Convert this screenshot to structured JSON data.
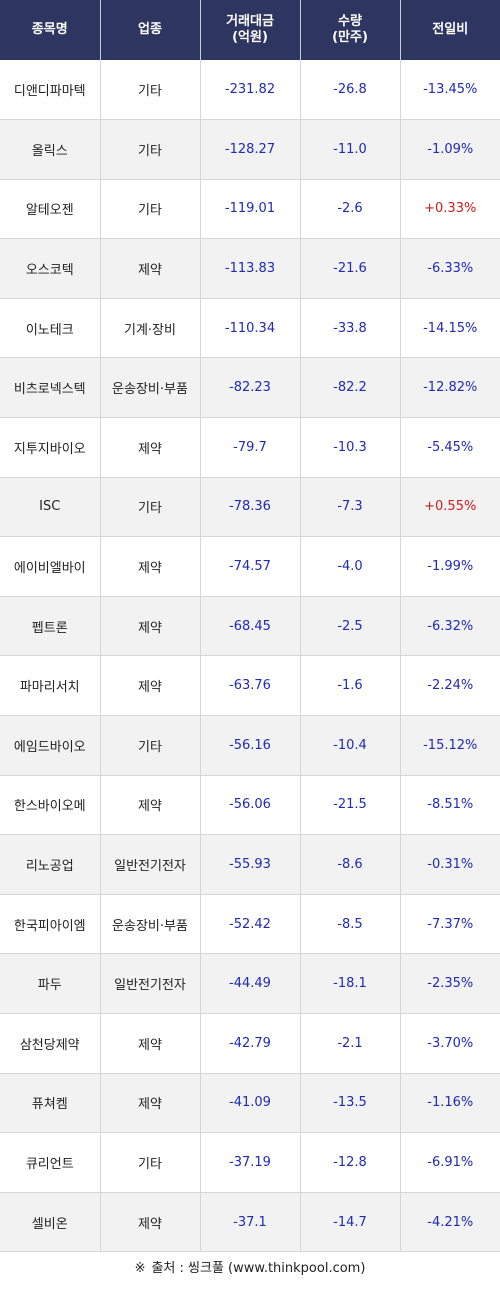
{
  "table": {
    "headers": [
      "종목명",
      "업종",
      "거래대금\n(억원)",
      "수량\n(만주)",
      "전일비"
    ],
    "rows": [
      {
        "name": "디앤디파마텍",
        "sector": "기타",
        "amount": "-231.82",
        "volume": "-26.8",
        "change": "-13.45%",
        "direction": "down"
      },
      {
        "name": "올릭스",
        "sector": "기타",
        "amount": "-128.27",
        "volume": "-11.0",
        "change": "-1.09%",
        "direction": "down"
      },
      {
        "name": "알테오젠",
        "sector": "기타",
        "amount": "-119.01",
        "volume": "-2.6",
        "change": "+0.33%",
        "direction": "up"
      },
      {
        "name": "오스코텍",
        "sector": "제약",
        "amount": "-113.83",
        "volume": "-21.6",
        "change": "-6.33%",
        "direction": "down"
      },
      {
        "name": "이노테크",
        "sector": "기계·장비",
        "amount": "-110.34",
        "volume": "-33.8",
        "change": "-14.15%",
        "direction": "down"
      },
      {
        "name": "비츠로넥스텍",
        "sector": "운송장비·부품",
        "amount": "-82.23",
        "volume": "-82.2",
        "change": "-12.82%",
        "direction": "down"
      },
      {
        "name": "지투지바이오",
        "sector": "제약",
        "amount": "-79.7",
        "volume": "-10.3",
        "change": "-5.45%",
        "direction": "down"
      },
      {
        "name": "ISC",
        "sector": "기타",
        "amount": "-78.36",
        "volume": "-7.3",
        "change": "+0.55%",
        "direction": "up"
      },
      {
        "name": "에이비엘바이",
        "sector": "제약",
        "amount": "-74.57",
        "volume": "-4.0",
        "change": "-1.99%",
        "direction": "down"
      },
      {
        "name": "펩트론",
        "sector": "제약",
        "amount": "-68.45",
        "volume": "-2.5",
        "change": "-6.32%",
        "direction": "down"
      },
      {
        "name": "파마리서치",
        "sector": "제약",
        "amount": "-63.76",
        "volume": "-1.6",
        "change": "-2.24%",
        "direction": "down"
      },
      {
        "name": "에임드바이오",
        "sector": "기타",
        "amount": "-56.16",
        "volume": "-10.4",
        "change": "-15.12%",
        "direction": "down"
      },
      {
        "name": "한스바이오메",
        "sector": "제약",
        "amount": "-56.06",
        "volume": "-21.5",
        "change": "-8.51%",
        "direction": "down"
      },
      {
        "name": "리노공업",
        "sector": "일반전기전자",
        "amount": "-55.93",
        "volume": "-8.6",
        "change": "-0.31%",
        "direction": "down"
      },
      {
        "name": "한국피아이엠",
        "sector": "운송장비·부품",
        "amount": "-52.42",
        "volume": "-8.5",
        "change": "-7.37%",
        "direction": "down"
      },
      {
        "name": "파두",
        "sector": "일반전기전자",
        "amount": "-44.49",
        "volume": "-18.1",
        "change": "-2.35%",
        "direction": "down"
      },
      {
        "name": "삼천당제약",
        "sector": "제약",
        "amount": "-42.79",
        "volume": "-2.1",
        "change": "-3.70%",
        "direction": "down"
      },
      {
        "name": "퓨쳐켐",
        "sector": "제약",
        "amount": "-41.09",
        "volume": "-13.5",
        "change": "-1.16%",
        "direction": "down"
      },
      {
        "name": "큐리언트",
        "sector": "기타",
        "amount": "-37.19",
        "volume": "-12.8",
        "change": "-6.91%",
        "direction": "down"
      },
      {
        "name": "셀비온",
        "sector": "제약",
        "amount": "-37.1",
        "volume": "-14.7",
        "change": "-4.21%",
        "direction": "down"
      }
    ]
  },
  "footer": {
    "mark": "※",
    "source": "출처 : 씽크풀 (www.thinkpool.com)"
  },
  "colors": {
    "header_bg": "#2e3560",
    "negative": "#1f2ab5",
    "positive": "#d11b1b",
    "stripe": "#f2f2f2"
  }
}
